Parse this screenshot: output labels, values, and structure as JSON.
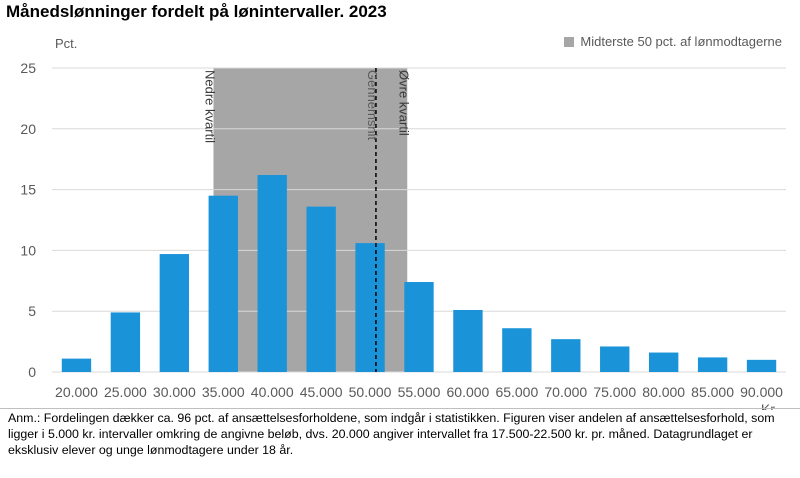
{
  "title": "Månedslønninger fordelt på lønintervaller. 2023",
  "note": "Anm.: Fordelingen dækker ca. 96 pct. af ansættelsesforholdene, som indgår i statistikken. Figuren viser andelen af ansættelsesforhold, som ligger i 5.000 kr. intervaller omkring de angivne beløb, dvs. 20.000 angiver intervallet fra 17.500-22.500 kr. pr. måned. Datagrundlaget er eksklusiv elever og unge lønmodtagere under 18 år.",
  "colors": {
    "bar": "#1b93d9",
    "band": "#a6a6a6",
    "grid": "#d9d9d9",
    "axis_text": "#595959"
  },
  "chart_data": {
    "type": "bar",
    "title": "Månedslønninger fordelt på lønintervaller. 2023",
    "ylabel": "Pct.",
    "xlabel": "Kr.",
    "ylim": [
      0,
      25
    ],
    "yticks": [
      0,
      5,
      10,
      15,
      20,
      25
    ],
    "grid": true,
    "categories": [
      "20.000",
      "25.000",
      "30.000",
      "35.000",
      "40.000",
      "45.000",
      "50.000",
      "55.000",
      "60.000",
      "65.000",
      "70.000",
      "75.000",
      "80.000",
      "85.000",
      "90.000"
    ],
    "values": [
      1.1,
      4.9,
      9.7,
      14.5,
      16.2,
      13.6,
      10.6,
      7.4,
      5.1,
      3.6,
      2.7,
      2.1,
      1.6,
      1.2,
      1.0
    ],
    "legend": {
      "label": "Midterste 50 pct. af lønmodtagerne",
      "position": "top-right"
    },
    "band": {
      "from": 34000,
      "to": 53800,
      "label": "Midterste 50 pct. af lønmodtagerne"
    },
    "annotations": [
      {
        "text": "Nedre kvartil",
        "x": 34000
      },
      {
        "text": "Gennemsnit",
        "x": 50600
      },
      {
        "text": "Øvre kvartil",
        "x": 53800
      }
    ],
    "mean_line_x": 50600
  }
}
